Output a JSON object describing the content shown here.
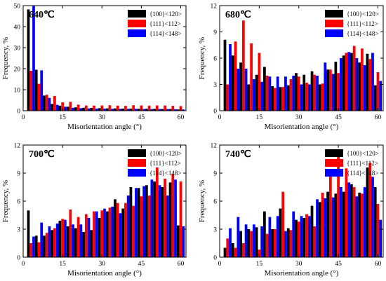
{
  "chart_data": [
    {
      "type": "bar",
      "title": "640℃",
      "xlabel": "Misorientation angle (°)",
      "ylabel": "Frequency, %",
      "xlim": [
        0,
        62
      ],
      "ylim": [
        0,
        50
      ],
      "xticks": [
        0,
        15,
        30,
        45,
        60
      ],
      "yticks": [
        0,
        10,
        20,
        30,
        40,
        50
      ],
      "x": [
        3,
        6,
        9,
        12,
        15,
        18,
        21,
        24,
        27,
        30,
        33,
        36,
        39,
        42,
        45,
        48,
        51,
        54,
        57,
        60
      ],
      "series": [
        {
          "name": "{100}<120>",
          "color": "#000000",
          "values": [
            48.2,
            19.5,
            7.2,
            3.2,
            2.4,
            1.9,
            1.6,
            1.4,
            1.3,
            1.2,
            1.1,
            1.1,
            1.0,
            1.0,
            0.9,
            0.9,
            0.9,
            0.8,
            0.8,
            0.6
          ]
        },
        {
          "name": "{111}<112>",
          "color": "#ff0000",
          "values": [
            19.0,
            12.8,
            7.6,
            7.0,
            4.0,
            4.2,
            2.9,
            2.5,
            2.4,
            2.5,
            2.6,
            2.4,
            2.3,
            2.6,
            2.5,
            2.4,
            2.5,
            2.5,
            2.3,
            2.2
          ]
        },
        {
          "name": "{114}<148>",
          "color": "#0000ff",
          "values": [
            49.8,
            19.2,
            6.1,
            2.8,
            1.9,
            1.4,
            1.2,
            1.1,
            1.0,
            1.0,
            0.9,
            0.9,
            0.9,
            0.9,
            0.8,
            0.8,
            0.8,
            0.8,
            0.7,
            0.6
          ]
        }
      ]
    },
    {
      "type": "bar",
      "title": "680℃",
      "xlabel": "Misorientation angle (°)",
      "ylabel": "Frequency, %",
      "xlim": [
        0,
        62
      ],
      "ylim": [
        0,
        12
      ],
      "xticks": [
        0,
        15,
        30,
        45,
        60
      ],
      "yticks": [
        0,
        3,
        6,
        9,
        12
      ],
      "x": [
        3,
        6,
        9,
        12,
        15,
        18,
        21,
        24,
        27,
        30,
        33,
        36,
        39,
        42,
        45,
        48,
        51,
        54,
        57,
        60
      ],
      "series": [
        {
          "name": "{100}<120>",
          "color": "#000000",
          "values": [
            8.1,
            6.3,
            5.5,
            3.0,
            4.1,
            5.0,
            2.8,
            2.7,
            2.9,
            4.3,
            4.1,
            4.5,
            3.0,
            4.7,
            5.6,
            6.3,
            6.6,
            5.5,
            6.5,
            2.9
          ]
        },
        {
          "name": "{111}<112>",
          "color": "#ff0000",
          "values": [
            3.0,
            7.9,
            10.3,
            7.7,
            6.6,
            4.0,
            2.6,
            2.7,
            3.6,
            3.9,
            3.2,
            4.1,
            3.1,
            4.7,
            4.3,
            6.6,
            7.4,
            7.1,
            5.9,
            4.4
          ]
        },
        {
          "name": "{114}<148>",
          "color": "#0000ff",
          "values": [
            7.6,
            4.8,
            4.8,
            3.6,
            3.3,
            3.9,
            3.9,
            3.9,
            4.0,
            3.0,
            3.0,
            4.0,
            5.5,
            4.2,
            6.0,
            6.7,
            6.0,
            5.2,
            6.6,
            3.4
          ]
        }
      ]
    },
    {
      "type": "bar",
      "title": "700℃",
      "xlabel": "Misorientation angle (°)",
      "ylabel": "Frequency, %",
      "xlim": [
        0,
        62
      ],
      "ylim": [
        0,
        12
      ],
      "xticks": [
        0,
        15,
        30,
        45,
        60
      ],
      "yticks": [
        0,
        3,
        6,
        9,
        12
      ],
      "x": [
        3,
        6,
        9,
        12,
        15,
        18,
        21,
        24,
        27,
        30,
        33,
        36,
        39,
        42,
        45,
        48,
        51,
        54,
        57,
        60
      ],
      "series": [
        {
          "name": "{100}<120>",
          "color": "#000000",
          "values": [
            5.0,
            2.3,
            2.3,
            2.9,
            3.9,
            3.3,
            3.1,
            2.7,
            2.9,
            4.2,
            4.9,
            6.2,
            5.2,
            7.5,
            7.4,
            7.7,
            8.1,
            7.5,
            8.0,
            3.4
          ]
        },
        {
          "name": "{111}<112>",
          "color": "#ff0000",
          "values": [
            1.5,
            1.6,
            2.6,
            3.1,
            4.1,
            5.1,
            4.3,
            4.6,
            4.9,
            5.0,
            5.3,
            5.8,
            5.8,
            5.5,
            6.5,
            6.6,
            9.6,
            8.4,
            8.9,
            8.1
          ]
        },
        {
          "name": "{114}<148>",
          "color": "#0000ff",
          "values": [
            2.2,
            3.7,
            3.3,
            3.6,
            4.0,
            3.5,
            3.5,
            4.2,
            4.9,
            5.2,
            5.4,
            4.7,
            6.6,
            7.4,
            7.6,
            8.3,
            7.7,
            6.6,
            8.3,
            3.3
          ]
        }
      ]
    },
    {
      "type": "bar",
      "title": "740℃",
      "xlabel": "Misorientation angle (°)",
      "ylabel": "Frequency, %",
      "xlim": [
        0,
        62
      ],
      "ylim": [
        0,
        12
      ],
      "xticks": [
        0,
        15,
        30,
        45,
        60
      ],
      "yticks": [
        0,
        3,
        6,
        9,
        12
      ],
      "x": [
        3,
        6,
        9,
        12,
        15,
        18,
        21,
        24,
        27,
        30,
        33,
        36,
        39,
        42,
        45,
        48,
        51,
        54,
        57,
        60
      ],
      "series": [
        {
          "name": "{100}<120>",
          "color": "#000000",
          "values": [
            1.0,
            1.5,
            2.8,
            3.0,
            3.2,
            4.9,
            3.0,
            5.2,
            3.1,
            4.0,
            4.2,
            5.5,
            5.9,
            7.0,
            6.8,
            7.0,
            7.8,
            6.9,
            9.6,
            7.5
          ]
        },
        {
          "name": "{111}<112>",
          "color": "#ff0000",
          "values": [
            2.0,
            1.0,
            1.5,
            2.8,
            0.8,
            2.5,
            3.0,
            7.0,
            2.9,
            3.8,
            4.6,
            3.3,
            6.9,
            9.0,
            10.8,
            9.5,
            7.5,
            6.8,
            10.1,
            5.7
          ]
        },
        {
          "name": "{114}<148>",
          "color": "#0000ff",
          "values": [
            3.1,
            4.3,
            3.5,
            3.5,
            3.3,
            4.3,
            4.4,
            2.8,
            4.9,
            4.4,
            4.4,
            6.2,
            6.3,
            6.4,
            7.5,
            8.0,
            6.5,
            7.5,
            8.6,
            4.0
          ]
        }
      ]
    }
  ]
}
